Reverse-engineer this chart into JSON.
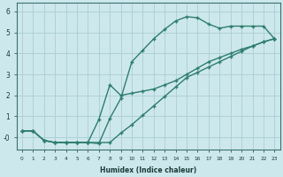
{
  "xlabel": "Humidex (Indice chaleur)",
  "background_color": "#cde8ec",
  "grid_color": "#aacdd4",
  "line_color": "#2e7d6e",
  "xlim": [
    -0.5,
    23.5
  ],
  "ylim": [
    -0.6,
    6.4
  ],
  "curve1_x": [
    0,
    1,
    2,
    3,
    4,
    5,
    6,
    7,
    8,
    9,
    10,
    11,
    12,
    13,
    14,
    15,
    16,
    17,
    18,
    19,
    20,
    21,
    22,
    23
  ],
  "curve1_y": [
    0.3,
    0.3,
    -0.15,
    -0.25,
    -0.25,
    -0.25,
    -0.25,
    -0.3,
    0.9,
    1.85,
    3.6,
    4.15,
    4.7,
    5.15,
    5.55,
    5.75,
    5.7,
    5.4,
    5.2,
    5.3,
    5.3,
    5.3,
    5.3,
    4.7
  ],
  "curve2_x": [
    0,
    1,
    2,
    3,
    4,
    5,
    6,
    7,
    8,
    9,
    10,
    11,
    12,
    13,
    14,
    15,
    16,
    17,
    18,
    19,
    20,
    21,
    22,
    23
  ],
  "curve2_y": [
    0.3,
    0.3,
    -0.15,
    -0.25,
    -0.25,
    -0.25,
    -0.25,
    -0.25,
    -0.25,
    0.2,
    0.6,
    1.05,
    1.5,
    1.95,
    2.4,
    2.85,
    3.1,
    3.35,
    3.6,
    3.85,
    4.1,
    4.35,
    4.55,
    4.7
  ],
  "curve3_x": [
    0,
    1,
    2,
    3,
    4,
    5,
    6,
    7,
    8,
    9,
    10,
    11,
    12,
    13,
    14,
    15,
    16,
    17,
    18,
    19,
    20,
    21,
    22,
    23
  ],
  "curve3_y": [
    0.3,
    0.3,
    -0.15,
    -0.25,
    -0.25,
    -0.25,
    -0.25,
    0.85,
    2.5,
    2.0,
    2.1,
    2.2,
    2.3,
    2.5,
    2.7,
    3.0,
    3.3,
    3.6,
    3.8,
    4.0,
    4.2,
    4.35,
    4.55,
    4.7
  ]
}
